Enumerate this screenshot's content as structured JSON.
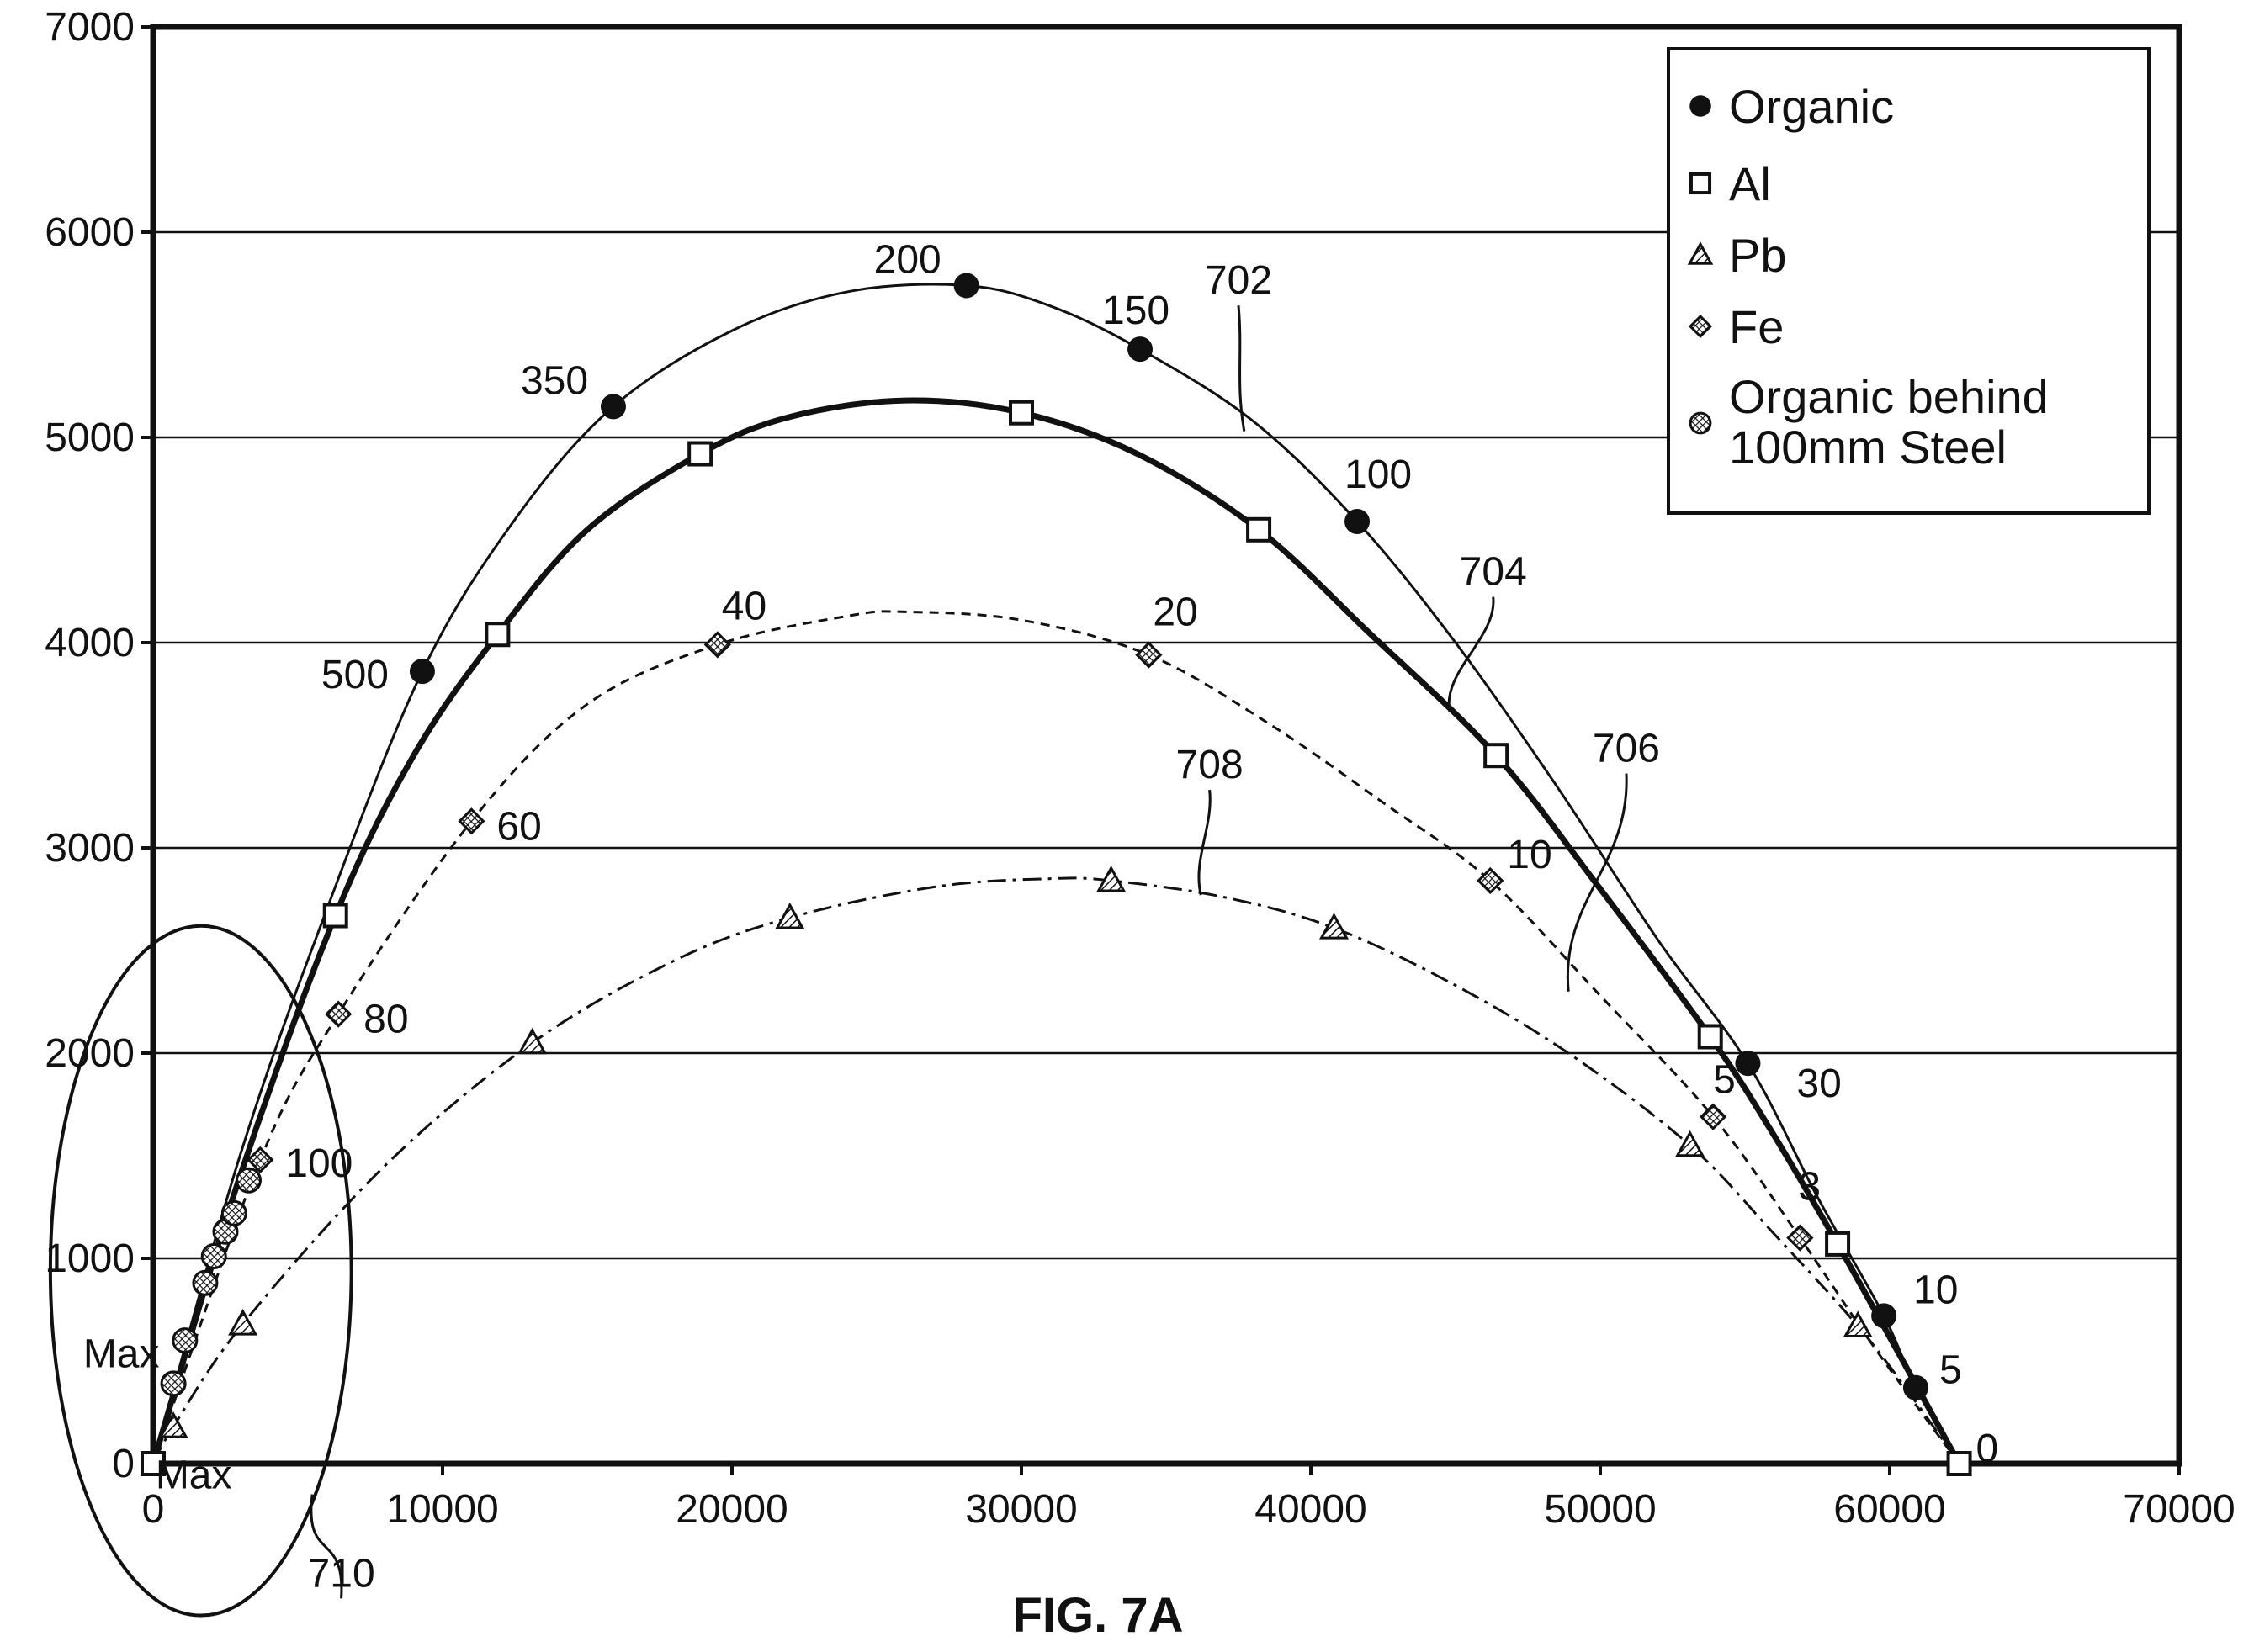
{
  "chart_data": {
    "type": "scatter",
    "title": "",
    "xlabel": "",
    "ylabel": "",
    "xlim": [
      0,
      70000
    ],
    "ylim": [
      0,
      7000
    ],
    "x_ticks": [
      "0",
      "10000",
      "20000",
      "30000",
      "40000",
      "50000",
      "60000",
      "70000"
    ],
    "y_ticks": [
      "0",
      "1000",
      "2000",
      "3000",
      "4000",
      "5000",
      "6000",
      "7000"
    ],
    "grid": "horizontal",
    "legend_position": "top-right",
    "caption": "FIG. 7A",
    "series": [
      {
        "name": "Organic",
        "marker": "circle",
        "line": "thin-solid",
        "points": [
          [
            9300,
            3860
          ],
          [
            15900,
            5150
          ],
          [
            28100,
            5740
          ],
          [
            34100,
            5430
          ],
          [
            41600,
            4590
          ],
          [
            55100,
            1950
          ],
          [
            59800,
            720
          ],
          [
            60900,
            370
          ],
          [
            62400,
            0
          ]
        ],
        "point_labels": [
          "500",
          "350",
          "200",
          "150",
          "100",
          "30",
          "10",
          "5",
          "0"
        ],
        "curve": [
          [
            0,
            0
          ],
          [
            3000,
            1500
          ],
          [
            6000,
            2700
          ],
          [
            9300,
            3860
          ],
          [
            12500,
            4600
          ],
          [
            15900,
            5150
          ],
          [
            20000,
            5520
          ],
          [
            24000,
            5710
          ],
          [
            28100,
            5740
          ],
          [
            31000,
            5640
          ],
          [
            34100,
            5430
          ],
          [
            38000,
            5080
          ],
          [
            41600,
            4590
          ],
          [
            45000,
            4000
          ],
          [
            48500,
            3300
          ],
          [
            52000,
            2550
          ],
          [
            55100,
            1950
          ],
          [
            57500,
            1300
          ],
          [
            59800,
            720
          ],
          [
            60900,
            370
          ],
          [
            62400,
            0
          ]
        ]
      },
      {
        "name": "Al",
        "marker": "square",
        "line": "thick-solid",
        "points": [
          [
            0,
            0
          ],
          [
            6300,
            2670
          ],
          [
            11900,
            4040
          ],
          [
            18900,
            4920
          ],
          [
            30000,
            5120
          ],
          [
            38200,
            4550
          ],
          [
            46400,
            3450
          ],
          [
            53800,
            2080
          ],
          [
            58200,
            1070
          ],
          [
            62400,
            0
          ]
        ],
        "curve": [
          [
            0,
            0
          ],
          [
            3000,
            1400
          ],
          [
            6300,
            2670
          ],
          [
            9000,
            3450
          ],
          [
            11900,
            4040
          ],
          [
            15000,
            4550
          ],
          [
            18900,
            4920
          ],
          [
            22000,
            5100
          ],
          [
            26000,
            5180
          ],
          [
            30000,
            5120
          ],
          [
            34000,
            4920
          ],
          [
            38200,
            4550
          ],
          [
            42000,
            4050
          ],
          [
            46400,
            3450
          ],
          [
            50000,
            2800
          ],
          [
            53800,
            2080
          ],
          [
            56000,
            1600
          ],
          [
            58200,
            1070
          ],
          [
            60300,
            540
          ],
          [
            62400,
            0
          ]
        ]
      },
      {
        "name": "Pb",
        "marker": "triangle",
        "line": "dash-dot",
        "points": [
          [
            700,
            180
          ],
          [
            3100,
            680
          ],
          [
            13100,
            2050
          ],
          [
            22000,
            2660
          ],
          [
            33100,
            2840
          ],
          [
            40800,
            2610
          ],
          [
            53100,
            1550
          ],
          [
            58900,
            670
          ]
        ],
        "curve": [
          [
            0,
            0
          ],
          [
            700,
            180
          ],
          [
            3100,
            680
          ],
          [
            8000,
            1450
          ],
          [
            13100,
            2050
          ],
          [
            18000,
            2450
          ],
          [
            22000,
            2660
          ],
          [
            27000,
            2810
          ],
          [
            31000,
            2850
          ],
          [
            33100,
            2840
          ],
          [
            37000,
            2760
          ],
          [
            40800,
            2610
          ],
          [
            45000,
            2330
          ],
          [
            49000,
            1990
          ],
          [
            53100,
            1550
          ],
          [
            56000,
            1120
          ],
          [
            58900,
            670
          ],
          [
            60800,
            320
          ],
          [
            62400,
            0
          ]
        ]
      },
      {
        "name": "Fe",
        "marker": "diamond",
        "line": "dashed",
        "points": [
          [
            3700,
            1480
          ],
          [
            6400,
            2190
          ],
          [
            11000,
            3130
          ],
          [
            19500,
            3990
          ],
          [
            34400,
            3940
          ],
          [
            46200,
            2840
          ],
          [
            53900,
            1690
          ],
          [
            56900,
            1100
          ]
        ],
        "point_labels": [
          "100",
          "80",
          "60",
          "40",
          "20",
          "10",
          "5",
          "3"
        ],
        "curve": [
          [
            0,
            0
          ],
          [
            3700,
            1480
          ],
          [
            6400,
            2190
          ],
          [
            11000,
            3130
          ],
          [
            15000,
            3700
          ],
          [
            19500,
            3990
          ],
          [
            24000,
            4130
          ],
          [
            26000,
            4150
          ],
          [
            30000,
            4110
          ],
          [
            34400,
            3940
          ],
          [
            38500,
            3610
          ],
          [
            42500,
            3220
          ],
          [
            46200,
            2840
          ],
          [
            50000,
            2280
          ],
          [
            53900,
            1690
          ],
          [
            56900,
            1100
          ],
          [
            59500,
            560
          ],
          [
            62400,
            0
          ]
        ]
      },
      {
        "name": "Organic behind 100mm Steel",
        "marker": "hatched-circle",
        "line": "none",
        "points": [
          [
            700,
            390
          ],
          [
            1100,
            600
          ],
          [
            1800,
            880
          ],
          [
            2100,
            1010
          ],
          [
            2500,
            1130
          ],
          [
            2800,
            1220
          ],
          [
            3300,
            1380
          ]
        ]
      }
    ],
    "annotations": [
      {
        "text": "702",
        "x": 37500,
        "y": 5700,
        "leader_to": [
          37700,
          5030
        ]
      },
      {
        "text": "704",
        "x": 46300,
        "y": 4280,
        "leader_to": [
          44800,
          3660
        ]
      },
      {
        "text": "706",
        "x": 50900,
        "y": 3420,
        "leader_to": [
          48900,
          2300
        ]
      },
      {
        "text": "708",
        "x": 36500,
        "y": 3340,
        "leader_to": [
          36200,
          2770
        ]
      },
      {
        "text": "710",
        "x": 6500,
        "y": -600,
        "leader_to": [
          5500,
          -150
        ]
      },
      {
        "text": "Max",
        "x": -1100,
        "y": 470
      },
      {
        "text": "Max",
        "x": 1400,
        "y": -120
      }
    ],
    "ellipse_region": {
      "label": "710",
      "cx": 1650,
      "cy": 940,
      "rx_data": 5200,
      "ry_data": 1680
    }
  }
}
